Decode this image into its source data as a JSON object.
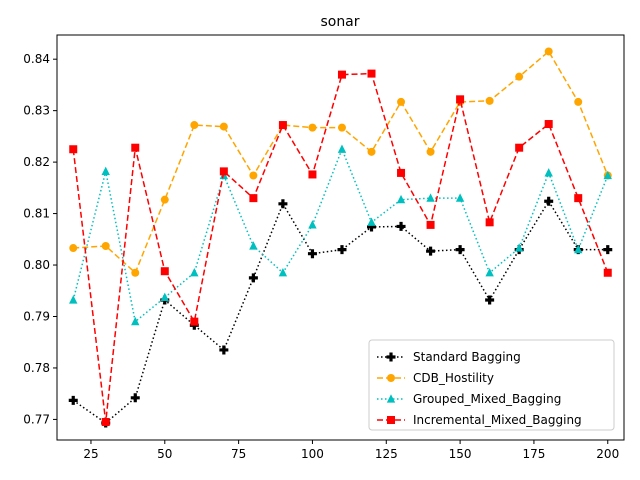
{
  "chart_data": {
    "type": "line",
    "title": "sonar",
    "xlabel": "",
    "ylabel": "",
    "xlim": [
      13.5,
      205.5
    ],
    "ylim": [
      0.766,
      0.8447
    ],
    "xticks": [
      25,
      50,
      75,
      100,
      125,
      150,
      175,
      200
    ],
    "xtick_labels": [
      "25",
      "50",
      "75",
      "100",
      "125",
      "150",
      "175",
      "200"
    ],
    "yticks": [
      0.77,
      0.78,
      0.79,
      0.8,
      0.81,
      0.82,
      0.83,
      0.84
    ],
    "ytick_labels": [
      "0.77",
      "0.78",
      "0.79",
      "0.80",
      "0.81",
      "0.82",
      "0.83",
      "0.84"
    ],
    "grid": false,
    "legend_position": "lower-right",
    "x": [
      19,
      30,
      40,
      50,
      60,
      70,
      80,
      90,
      100,
      110,
      120,
      130,
      140,
      150,
      160,
      170,
      180,
      190,
      200
    ],
    "series": [
      {
        "name": "Standard Bagging",
        "color": "#000000",
        "dash": "dotted",
        "marker": "plus",
        "values": [
          0.7737,
          0.7693,
          0.7742,
          0.7932,
          0.7883,
          0.7835,
          0.7975,
          0.8119,
          0.8022,
          0.803,
          0.8074,
          0.8075,
          0.8027,
          0.803,
          0.7932,
          0.803,
          0.8124,
          0.803,
          0.803
        ]
      },
      {
        "name": "CDB_Hostility",
        "color": "#ffa500",
        "dash": "dashed",
        "marker": "circle",
        "values": [
          0.8033,
          0.8037,
          0.7985,
          0.8127,
          0.8272,
          0.8269,
          0.8174,
          0.8272,
          0.8267,
          0.8267,
          0.822,
          0.8317,
          0.822,
          0.8317,
          0.8319,
          0.8366,
          0.8415,
          0.8317,
          0.8174
        ]
      },
      {
        "name": "Grouped_Mixed_Bagging",
        "color": "#00bfbf",
        "dash": "dotted",
        "marker": "triangle",
        "values": [
          0.7932,
          0.8182,
          0.789,
          0.7937,
          0.7985,
          0.8174,
          0.8037,
          0.7985,
          0.8078,
          0.8225,
          0.8083,
          0.8127,
          0.813,
          0.813,
          0.7985,
          0.8033,
          0.8179,
          0.803,
          0.8174
        ]
      },
      {
        "name": "Incremental_Mixed_Bagging",
        "color": "#ff0000",
        "dash": "dashed",
        "marker": "square",
        "values": [
          0.8225,
          0.7695,
          0.8228,
          0.7988,
          0.789,
          0.8182,
          0.813,
          0.8272,
          0.8176,
          0.837,
          0.8372,
          0.8179,
          0.8078,
          0.8322,
          0.8083,
          0.8228,
          0.8274,
          0.813,
          0.7985
        ]
      }
    ]
  }
}
